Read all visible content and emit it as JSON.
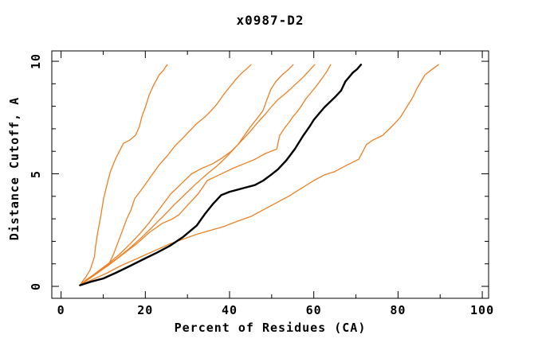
{
  "window": {
    "background": "#ffffff",
    "frame_color": "#000000"
  },
  "chart_data": {
    "type": "line",
    "title": "x0987-D2",
    "xlabel": "Percent of Residues (CA)",
    "ylabel": "Distance Cutoff, A",
    "xlim": [
      -2.2,
      101.5
    ],
    "ylim": [
      -0.53,
      10.46
    ],
    "x_major_ticks": [
      0,
      20,
      40,
      60,
      80,
      100
    ],
    "x_minor_ticks": [
      10,
      30,
      50,
      70,
      90
    ],
    "y_major_ticks": [
      0,
      5,
      10
    ],
    "y_minor_ticks": [
      1,
      2,
      3,
      4,
      6,
      7,
      8,
      9
    ],
    "grid": false,
    "legend": "none",
    "tick_style": "inward-mirrored",
    "colors": {
      "model_line": "#ED8022",
      "reference_line": "#000000"
    },
    "series": [
      {
        "name": "model-curve-1",
        "color": "#ED8022",
        "width": 1.3,
        "points": [
          [
            4.5,
            0.05
          ],
          [
            5.2,
            0.25
          ],
          [
            6.0,
            0.45
          ],
          [
            6.8,
            0.7
          ],
          [
            7.3,
            0.95
          ],
          [
            7.9,
            1.3
          ],
          [
            8.2,
            1.8
          ],
          [
            8.7,
            2.4
          ],
          [
            9.4,
            3.1
          ],
          [
            10.1,
            3.9
          ],
          [
            11.0,
            4.6
          ],
          [
            11.7,
            5.1
          ],
          [
            12.9,
            5.65
          ],
          [
            14.8,
            6.35
          ],
          [
            16.3,
            6.5
          ],
          [
            17.7,
            6.72
          ],
          [
            18.6,
            7.1
          ],
          [
            19.2,
            7.55
          ],
          [
            20.1,
            8.0
          ],
          [
            20.9,
            8.5
          ],
          [
            22.0,
            8.95
          ],
          [
            23.3,
            9.4
          ],
          [
            24.3,
            9.6
          ],
          [
            25.2,
            9.85
          ]
        ]
      },
      {
        "name": "model-curve-2",
        "color": "#ED8022",
        "width": 1.3,
        "points": [
          [
            4.5,
            0.05
          ],
          [
            6.0,
            0.3
          ],
          [
            8.0,
            0.55
          ],
          [
            10.0,
            0.8
          ],
          [
            11.5,
            1.05
          ],
          [
            12.5,
            1.45
          ],
          [
            13.5,
            1.95
          ],
          [
            14.5,
            2.45
          ],
          [
            15.5,
            2.95
          ],
          [
            16.5,
            3.35
          ],
          [
            17.5,
            3.9
          ],
          [
            19.5,
            4.4
          ],
          [
            21.4,
            4.9
          ],
          [
            23.3,
            5.4
          ],
          [
            25.2,
            5.8
          ],
          [
            27.1,
            6.25
          ],
          [
            29.0,
            6.6
          ],
          [
            30.5,
            6.9
          ],
          [
            32.0,
            7.2
          ],
          [
            34.0,
            7.5
          ],
          [
            35.6,
            7.8
          ],
          [
            37.0,
            8.1
          ],
          [
            38.5,
            8.5
          ],
          [
            40.0,
            8.85
          ],
          [
            41.5,
            9.2
          ],
          [
            43.0,
            9.5
          ],
          [
            44.0,
            9.65
          ],
          [
            45.1,
            9.85
          ]
        ]
      },
      {
        "name": "model-curve-3",
        "color": "#ED8022",
        "width": 1.3,
        "points": [
          [
            4.5,
            0.05
          ],
          [
            6.5,
            0.35
          ],
          [
            9.0,
            0.7
          ],
          [
            11.5,
            1.05
          ],
          [
            14.0,
            1.45
          ],
          [
            16.5,
            1.9
          ],
          [
            19.0,
            2.4
          ],
          [
            21.0,
            2.85
          ],
          [
            22.4,
            3.2
          ],
          [
            24.0,
            3.6
          ],
          [
            26.0,
            4.1
          ],
          [
            28.5,
            4.55
          ],
          [
            31.0,
            5.0
          ],
          [
            33.5,
            5.25
          ],
          [
            36.0,
            5.45
          ],
          [
            38.2,
            5.7
          ],
          [
            40.4,
            6.0
          ],
          [
            42.0,
            6.3
          ],
          [
            43.5,
            6.7
          ],
          [
            45.0,
            7.1
          ],
          [
            46.5,
            7.45
          ],
          [
            47.9,
            7.8
          ],
          [
            48.9,
            8.3
          ],
          [
            49.8,
            8.75
          ],
          [
            51.0,
            9.1
          ],
          [
            52.5,
            9.4
          ],
          [
            53.8,
            9.6
          ],
          [
            55.1,
            9.85
          ]
        ]
      },
      {
        "name": "model-curve-4",
        "color": "#ED8022",
        "width": 1.3,
        "points": [
          [
            4.5,
            0.05
          ],
          [
            7.0,
            0.4
          ],
          [
            10.0,
            0.8
          ],
          [
            13.0,
            1.2
          ],
          [
            16.0,
            1.65
          ],
          [
            19.0,
            2.15
          ],
          [
            22.0,
            2.7
          ],
          [
            24.7,
            3.2
          ],
          [
            27.0,
            3.65
          ],
          [
            29.5,
            4.1
          ],
          [
            32.0,
            4.55
          ],
          [
            34.7,
            5.0
          ],
          [
            37.0,
            5.35
          ],
          [
            39.0,
            5.7
          ],
          [
            41.0,
            6.1
          ],
          [
            43.0,
            6.5
          ],
          [
            45.0,
            6.9
          ],
          [
            47.0,
            7.35
          ],
          [
            48.5,
            7.65
          ],
          [
            49.8,
            7.95
          ],
          [
            51.5,
            8.3
          ],
          [
            53.5,
            8.6
          ],
          [
            55.5,
            8.95
          ],
          [
            57.5,
            9.3
          ],
          [
            59.0,
            9.6
          ],
          [
            60.2,
            9.85
          ]
        ]
      },
      {
        "name": "model-curve-5",
        "color": "#ED8022",
        "width": 1.3,
        "points": [
          [
            4.5,
            0.05
          ],
          [
            7.5,
            0.45
          ],
          [
            11.0,
            0.9
          ],
          [
            14.5,
            1.4
          ],
          [
            18.0,
            1.9
          ],
          [
            21.0,
            2.4
          ],
          [
            24.0,
            2.8
          ],
          [
            26.5,
            3.0
          ],
          [
            28.1,
            3.2
          ],
          [
            30.0,
            3.6
          ],
          [
            32.5,
            4.1
          ],
          [
            34.7,
            4.7
          ],
          [
            37.5,
            4.95
          ],
          [
            40.9,
            5.25
          ],
          [
            43.5,
            5.45
          ],
          [
            46.1,
            5.65
          ],
          [
            48.5,
            5.9
          ],
          [
            51.2,
            6.1
          ],
          [
            51.9,
            6.7
          ],
          [
            53.2,
            7.07
          ],
          [
            54.2,
            7.3
          ],
          [
            55.1,
            7.55
          ],
          [
            56.1,
            7.77
          ],
          [
            57.0,
            8.0
          ],
          [
            58.0,
            8.3
          ],
          [
            59.3,
            8.6
          ],
          [
            60.6,
            8.9
          ],
          [
            61.8,
            9.2
          ],
          [
            63.1,
            9.55
          ],
          [
            64.0,
            9.85
          ]
        ]
      },
      {
        "name": "model-curve-6",
        "color": "#ED8022",
        "width": 1.3,
        "points": [
          [
            4.5,
            0.05
          ],
          [
            8.0,
            0.35
          ],
          [
            11.0,
            0.6
          ],
          [
            14.0,
            0.9
          ],
          [
            17.0,
            1.15
          ],
          [
            20.0,
            1.4
          ],
          [
            23.0,
            1.65
          ],
          [
            26.0,
            1.9
          ],
          [
            29.0,
            2.1
          ],
          [
            32.0,
            2.3
          ],
          [
            34.7,
            2.45
          ],
          [
            38.5,
            2.65
          ],
          [
            42.0,
            2.9
          ],
          [
            45.0,
            3.1
          ],
          [
            48.0,
            3.4
          ],
          [
            51.0,
            3.7
          ],
          [
            54.0,
            4.0
          ],
          [
            57.0,
            4.35
          ],
          [
            60.0,
            4.7
          ],
          [
            62.5,
            4.95
          ],
          [
            65.0,
            5.1
          ],
          [
            67.5,
            5.35
          ],
          [
            70.7,
            5.65
          ],
          [
            72.5,
            6.3
          ],
          [
            74.0,
            6.5
          ],
          [
            76.3,
            6.7
          ],
          [
            78.5,
            7.1
          ],
          [
            80.5,
            7.5
          ],
          [
            82.0,
            7.95
          ],
          [
            83.5,
            8.4
          ],
          [
            84.5,
            8.8
          ],
          [
            86.4,
            9.4
          ],
          [
            87.8,
            9.6
          ],
          [
            89.6,
            9.85
          ]
        ]
      },
      {
        "name": "reference-curve",
        "color": "#000000",
        "width": 2.4,
        "points": [
          [
            4.5,
            0.05
          ],
          [
            7.0,
            0.2
          ],
          [
            10.0,
            0.35
          ],
          [
            13.0,
            0.6
          ],
          [
            16.3,
            0.9
          ],
          [
            19.5,
            1.2
          ],
          [
            22.8,
            1.5
          ],
          [
            25.8,
            1.8
          ],
          [
            29.0,
            2.2
          ],
          [
            32.2,
            2.7
          ],
          [
            34.1,
            3.2
          ],
          [
            36.0,
            3.65
          ],
          [
            38.0,
            4.05
          ],
          [
            40.0,
            4.2
          ],
          [
            42.0,
            4.3
          ],
          [
            44.0,
            4.4
          ],
          [
            46.0,
            4.5
          ],
          [
            48.0,
            4.7
          ],
          [
            49.8,
            4.95
          ],
          [
            51.5,
            5.2
          ],
          [
            53.5,
            5.6
          ],
          [
            55.5,
            6.1
          ],
          [
            57.5,
            6.7
          ],
          [
            59.0,
            7.1
          ],
          [
            60.0,
            7.4
          ],
          [
            62.5,
            7.95
          ],
          [
            65.0,
            8.4
          ],
          [
            66.5,
            8.7
          ],
          [
            67.5,
            9.1
          ],
          [
            69.3,
            9.5
          ],
          [
            70.3,
            9.65
          ],
          [
            71.2,
            9.85
          ]
        ]
      }
    ]
  }
}
